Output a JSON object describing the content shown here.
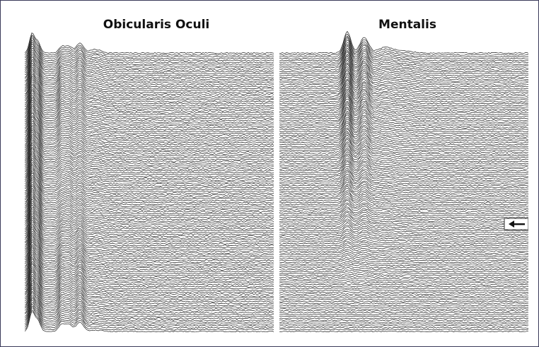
{
  "figure": {
    "panels": [
      {
        "title": "Obicularis Oculi"
      },
      {
        "title": "Mentalis"
      }
    ],
    "marker_icon": "arrow-left-icon",
    "trace_color": "#222222",
    "fill_color": "#ffffff"
  }
}
